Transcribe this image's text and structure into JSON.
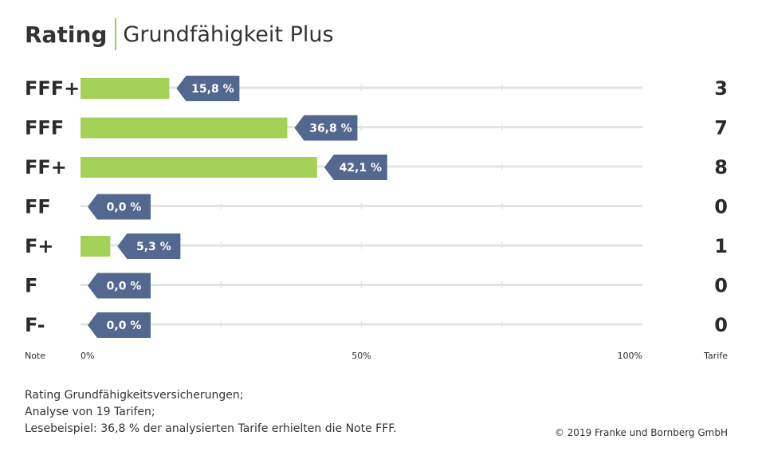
{
  "header": {
    "title_bold": "Rating",
    "title_rest": "Grundfähigkeit Plus"
  },
  "colors": {
    "bar": "#a4d157",
    "label": "#52688f",
    "grid": "#e4e4e4",
    "text": "#2b2b2b"
  },
  "chart_data": {
    "type": "bar",
    "orientation": "horizontal",
    "categories": [
      "FFF+",
      "FFF",
      "FF+",
      "FF",
      "F+",
      "F",
      "F-"
    ],
    "values": [
      15.8,
      36.8,
      42.1,
      0.0,
      5.3,
      0.0,
      0.0
    ],
    "value_labels": [
      "15,8 %",
      "36,8 %",
      "42,1 %",
      "0,0 %",
      "5,3 %",
      "0,0 %",
      "0,0 %"
    ],
    "counts": [
      3,
      7,
      8,
      0,
      1,
      0,
      0
    ],
    "xlim": [
      0,
      100
    ],
    "x_ticks": [
      "0%",
      "50%",
      "100%"
    ],
    "xlabel_left": "Note",
    "xlabel_right": "Tarife",
    "grid": true
  },
  "footer": {
    "lines": [
      "Rating  Grundfähigkeitsversicherungen;",
      "Analyse von 19 Tarifen;",
      "Lesebeispiel: 36,8 % der analysierten Tarife erhielten die Note FFF."
    ],
    "copyright": "© 2019 Franke und Bornberg GmbH"
  }
}
